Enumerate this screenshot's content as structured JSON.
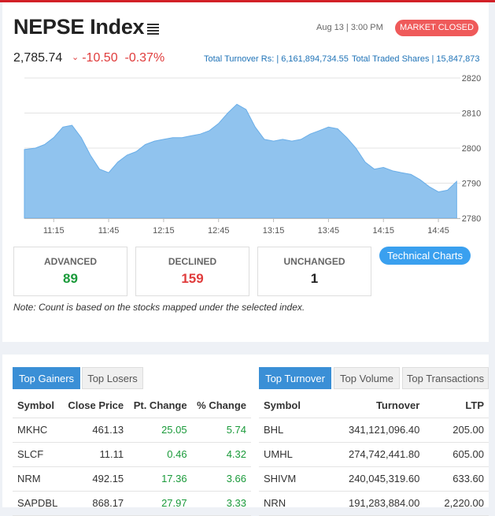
{
  "header": {
    "title": "NEPSE Index",
    "datetime": "Aug 13 | 3:00 PM",
    "status": "MARKET CLOSED"
  },
  "index": {
    "value": "2,785.74",
    "change": "-10.50",
    "percent": "-0.37%",
    "change_icon": "caret-down-icon"
  },
  "turnover_text": "Total Turnover Rs: | 6,161,894,734.55",
  "shares_text": "Total Traded Shares | 15,847,873",
  "colors": {
    "accent": "#3aa0ef",
    "negative": "#e03c3c",
    "positive": "#1a9a3a",
    "area": "#90c3ee"
  },
  "chart_data": {
    "type": "area",
    "x_ticks": [
      "11:15",
      "11:45",
      "12:15",
      "12:45",
      "13:15",
      "13:45",
      "14:15",
      "14:45"
    ],
    "y_ticks": [
      2780,
      2790,
      2800,
      2810,
      2820
    ],
    "ylim": [
      2780,
      2820
    ],
    "x": [
      "10:59",
      "11:05",
      "11:10",
      "11:15",
      "11:20",
      "11:25",
      "11:30",
      "11:35",
      "11:40",
      "11:45",
      "11:50",
      "11:55",
      "12:00",
      "12:05",
      "12:10",
      "12:15",
      "12:20",
      "12:25",
      "12:30",
      "12:35",
      "12:40",
      "12:45",
      "12:50",
      "12:55",
      "13:00",
      "13:05",
      "13:10",
      "13:15",
      "13:20",
      "13:25",
      "13:30",
      "13:35",
      "13:40",
      "13:45",
      "13:50",
      "13:55",
      "14:00",
      "14:05",
      "14:10",
      "14:15",
      "14:20",
      "14:25",
      "14:30",
      "14:35",
      "14:40",
      "14:45",
      "14:50",
      "14:55"
    ],
    "values": [
      2799.6,
      2800,
      2801,
      2803,
      2806,
      2806.5,
      2803,
      2798,
      2794,
      2793,
      2796,
      2798,
      2799,
      2801,
      2802,
      2802.5,
      2803,
      2803,
      2803.5,
      2804,
      2805,
      2807,
      2810,
      2812.5,
      2811,
      2806,
      2802.5,
      2802,
      2802.5,
      2802,
      2802.5,
      2804,
      2805,
      2806,
      2805.5,
      2803,
      2800,
      2796,
      2794,
      2794.5,
      2793.5,
      2793,
      2792.5,
      2791,
      2789,
      2787.5,
      2788,
      2790.5
    ],
    "grid": true
  },
  "stats": [
    {
      "label": "ADVANCED",
      "value": "89",
      "color": "#1a9a3a"
    },
    {
      "label": "DECLINED",
      "value": "159",
      "color": "#e03c3c"
    },
    {
      "label": "UNCHANGED",
      "value": "1",
      "color": "#222"
    }
  ],
  "technical_charts_label": "Technical Charts",
  "note": "Note: Count is based on the stocks mapped under the selected index.",
  "gainers": {
    "tabs": [
      "Top Gainers",
      "Top Losers"
    ],
    "columns": [
      "Symbol",
      "Close Price",
      "Pt. Change",
      "% Change"
    ],
    "rows": [
      [
        "MKHC",
        "461.13",
        "25.05",
        "5.74"
      ],
      [
        "SLCF",
        "11.11",
        "0.46",
        "4.32"
      ],
      [
        "NRM",
        "492.15",
        "17.36",
        "3.66"
      ],
      [
        "SAPDBL",
        "868.17",
        "27.97",
        "3.33"
      ]
    ]
  },
  "turnover": {
    "tabs": [
      "Top Turnover",
      "Top Volume",
      "Top Transactions"
    ],
    "columns": [
      "Symbol",
      "Turnover",
      "LTP"
    ],
    "rows": [
      [
        "BHL",
        "341,121,096.40",
        "205.00"
      ],
      [
        "UMHL",
        "274,742,441.80",
        "605.00"
      ],
      [
        "SHIVM",
        "240,045,319.60",
        "633.60"
      ],
      [
        "NRN",
        "191,283,884.00",
        "2,220.00"
      ]
    ]
  }
}
